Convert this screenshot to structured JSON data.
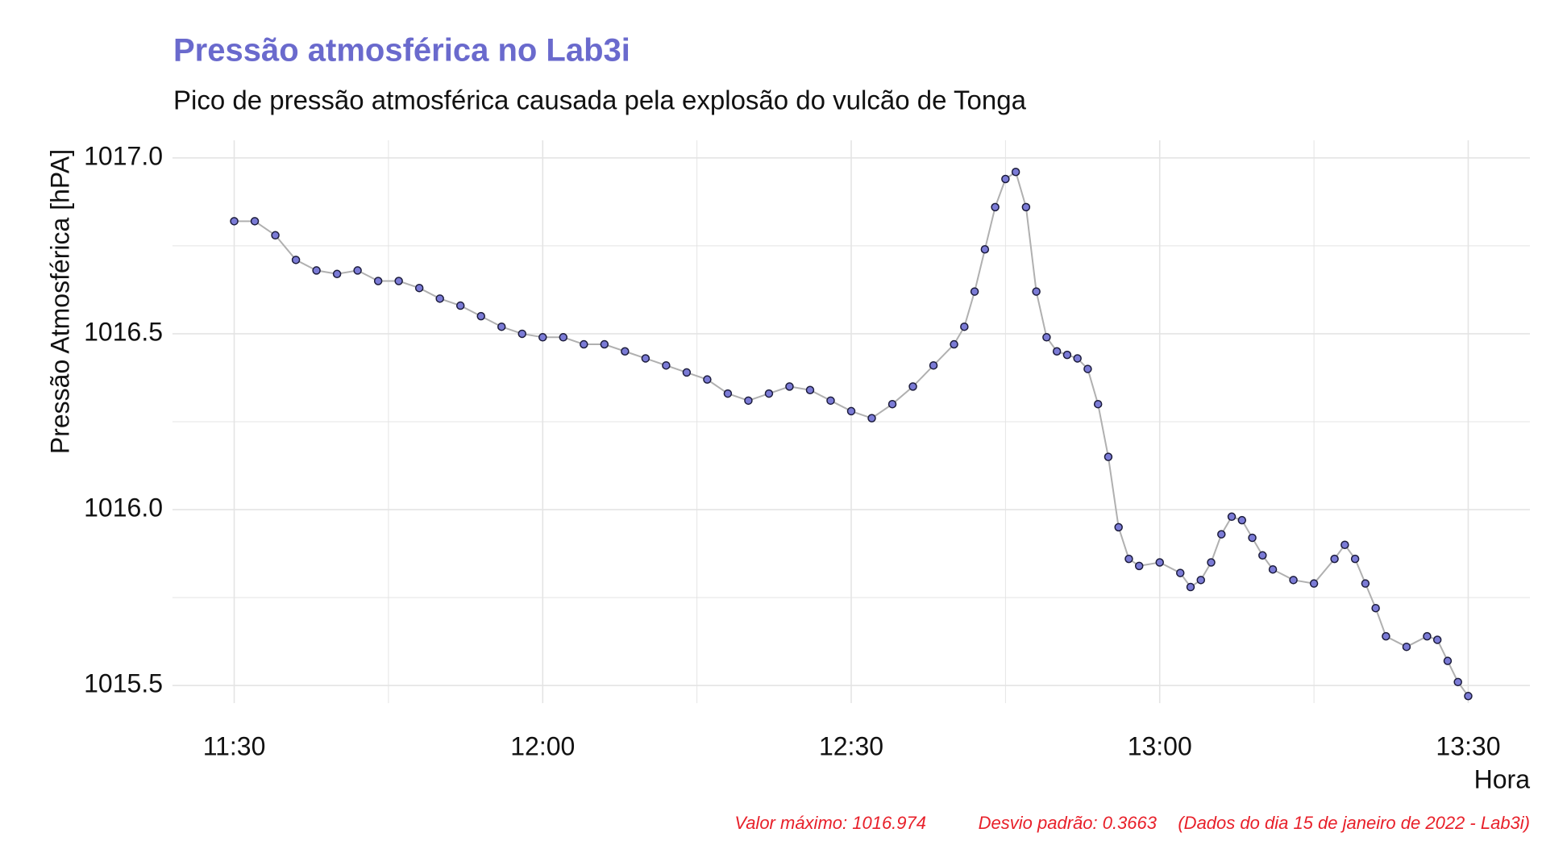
{
  "chart_data": {
    "type": "line_scatter",
    "title": "Pressão atmosférica no Lab3i",
    "subtitle": "Pico de pressão atmosférica causada pela explosão do vulcão de Tonga",
    "y_label": "Pressão Atmosférica [hPA]",
    "x_label": "Hora",
    "captions": [
      "Valor máximo: 1016.974",
      "Desvio padrão: 0.3663",
      "(Dados do dia 15 de janeiro de 2022 - Lab3i)"
    ],
    "x": [
      "11:30",
      "11:32",
      "11:34",
      "11:36",
      "11:38",
      "11:40",
      "11:42",
      "11:44",
      "11:46",
      "11:48",
      "11:50",
      "11:52",
      "11:54",
      "11:56",
      "11:58",
      "12:00",
      "12:02",
      "12:04",
      "12:06",
      "12:08",
      "12:10",
      "12:12",
      "12:14",
      "12:16",
      "12:18",
      "12:20",
      "12:22",
      "12:24",
      "12:26",
      "12:28",
      "12:30",
      "12:32",
      "12:34",
      "12:36",
      "12:38",
      "12:40",
      "12:41",
      "12:42",
      "12:43",
      "12:44",
      "12:45",
      "12:46",
      "12:47",
      "12:48",
      "12:49",
      "12:50",
      "12:51",
      "12:52",
      "12:53",
      "12:54",
      "12:55",
      "12:56",
      "12:57",
      "12:58",
      "13:00",
      "13:02",
      "13:03",
      "13:04",
      "13:05",
      "13:06",
      "13:07",
      "13:08",
      "13:09",
      "13:10",
      "13:11",
      "13:13",
      "13:15",
      "13:17",
      "13:18",
      "13:19",
      "13:20",
      "13:21",
      "13:22",
      "13:24",
      "13:26",
      "13:27",
      "13:28",
      "13:29",
      "13:30"
    ],
    "series": [
      {
        "name": "Pressão",
        "color": "#7b7bd6",
        "line_color": "#b0b0b0",
        "edge_color": "#1c1c3c",
        "values": [
          1016.82,
          1016.82,
          1016.78,
          1016.71,
          1016.68,
          1016.67,
          1016.68,
          1016.65,
          1016.65,
          1016.63,
          1016.6,
          1016.58,
          1016.55,
          1016.52,
          1016.5,
          1016.49,
          1016.49,
          1016.47,
          1016.47,
          1016.45,
          1016.43,
          1016.41,
          1016.39,
          1016.37,
          1016.33,
          1016.31,
          1016.33,
          1016.35,
          1016.34,
          1016.31,
          1016.28,
          1016.26,
          1016.3,
          1016.35,
          1016.41,
          1016.47,
          1016.52,
          1016.62,
          1016.74,
          1016.86,
          1016.94,
          1016.96,
          1016.86,
          1016.62,
          1016.49,
          1016.45,
          1016.44,
          1016.43,
          1016.4,
          1016.3,
          1016.15,
          1015.95,
          1015.86,
          1015.84,
          1015.85,
          1015.82,
          1015.78,
          1015.8,
          1015.85,
          1015.93,
          1015.98,
          1015.97,
          1015.92,
          1015.87,
          1015.83,
          1015.8,
          1015.79,
          1015.86,
          1015.9,
          1015.86,
          1015.79,
          1015.72,
          1015.64,
          1015.61,
          1015.64,
          1015.63,
          1015.57,
          1015.51,
          1015.47
        ]
      }
    ],
    "xlim": [
      "11:24",
      "13:36"
    ],
    "xticks": [
      "11:30",
      "12:00",
      "12:30",
      "13:00",
      "13:30"
    ],
    "minor_xticks": [
      "11:45",
      "12:15",
      "12:45",
      "13:15"
    ],
    "ylim": [
      1015.45,
      1017.05
    ],
    "yticks": [
      {
        "value": 1015.5,
        "label": "1015.5"
      },
      {
        "value": 1016,
        "label": "1016.0"
      },
      {
        "value": 1016.5,
        "label": "1016.5"
      },
      {
        "value": 1017,
        "label": "1017.0"
      }
    ],
    "minor_yticks": [
      1015.75,
      1016.25,
      1016.75
    ],
    "grid": true,
    "grid_color": "#e4e4e4",
    "title_color": "#6a6acd",
    "caption_color": "#e8202a"
  }
}
